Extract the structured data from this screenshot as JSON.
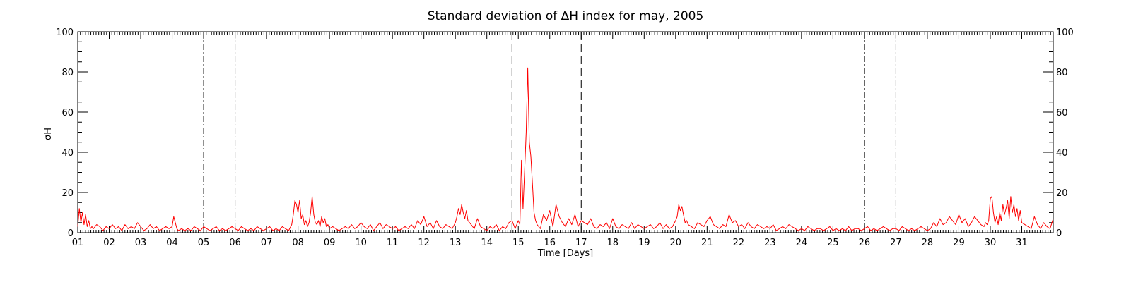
{
  "chart_data": {
    "type": "line",
    "title": "Standard deviation of ΔH index for may, 2005",
    "xlabel": "Time [Days]",
    "ylabel": "σH",
    "xlim": [
      1,
      32
    ],
    "ylim": [
      0,
      100
    ],
    "x_ticks": [
      "01",
      "02",
      "03",
      "04",
      "05",
      "06",
      "07",
      "08",
      "09",
      "10",
      "11",
      "12",
      "13",
      "14",
      "15",
      "16",
      "17",
      "18",
      "19",
      "20",
      "21",
      "22",
      "23",
      "24",
      "25",
      "26",
      "27",
      "28",
      "29",
      "30",
      "31"
    ],
    "y_ticks": [
      0,
      20,
      40,
      60,
      80,
      100
    ],
    "grid": false,
    "line_color": "#ff0000",
    "vertical_markers": [
      {
        "x": 5.0,
        "style": "dash-dot"
      },
      {
        "x": 6.0,
        "style": "dash-dot"
      },
      {
        "x": 14.8,
        "style": "dashed"
      },
      {
        "x": 17.0,
        "style": "dashed"
      },
      {
        "x": 26.0,
        "style": "dash-dot"
      },
      {
        "x": 27.0,
        "style": "dash-dot"
      }
    ],
    "series": [
      {
        "x": [
          1.0,
          1.05,
          1.1,
          1.15,
          1.2,
          1.25,
          1.3,
          1.35,
          1.4,
          1.45,
          1.5,
          1.6,
          1.7,
          1.8,
          1.9,
          2.0,
          2.1,
          2.2,
          2.3,
          2.4,
          2.5,
          2.6,
          2.7,
          2.8,
          2.9,
          3.0,
          3.1,
          3.2,
          3.3,
          3.4,
          3.5,
          3.6,
          3.7,
          3.8,
          3.9,
          4.0,
          4.05,
          4.1,
          4.15,
          4.2,
          4.3,
          4.4,
          4.5,
          4.6,
          4.7,
          4.8,
          4.9,
          5.0,
          5.1,
          5.2,
          5.3,
          5.4,
          5.5,
          5.6,
          5.7,
          5.8,
          5.9,
          6.0,
          6.1,
          6.2,
          6.3,
          6.4,
          6.5,
          6.6,
          6.7,
          6.8,
          6.9,
          7.0,
          7.1,
          7.2,
          7.3,
          7.4,
          7.5,
          7.6,
          7.7,
          7.8,
          7.85,
          7.9,
          7.95,
          8.0,
          8.05,
          8.1,
          8.15,
          8.2,
          8.25,
          8.3,
          8.35,
          8.4,
          8.45,
          8.5,
          8.55,
          8.6,
          8.65,
          8.7,
          8.75,
          8.8,
          8.85,
          8.9,
          8.95,
          9.0,
          9.1,
          9.2,
          9.3,
          9.4,
          9.5,
          9.6,
          9.7,
          9.8,
          9.9,
          10.0,
          10.1,
          10.2,
          10.3,
          10.4,
          10.5,
          10.6,
          10.7,
          10.8,
          10.9,
          11.0,
          11.1,
          11.2,
          11.3,
          11.4,
          11.5,
          11.6,
          11.7,
          11.8,
          11.9,
          12.0,
          12.1,
          12.2,
          12.3,
          12.4,
          12.5,
          12.6,
          12.7,
          12.8,
          12.9,
          13.0,
          13.05,
          13.1,
          13.15,
          13.2,
          13.25,
          13.3,
          13.35,
          13.4,
          13.5,
          13.6,
          13.7,
          13.8,
          13.9,
          14.0,
          14.1,
          14.2,
          14.3,
          14.4,
          14.5,
          14.6,
          14.7,
          14.8,
          14.9,
          15.0,
          15.05,
          15.1,
          15.15,
          15.2,
          15.25,
          15.3,
          15.35,
          15.4,
          15.45,
          15.5,
          15.55,
          15.6,
          15.7,
          15.8,
          15.9,
          16.0,
          16.1,
          16.2,
          16.3,
          16.4,
          16.5,
          16.6,
          16.7,
          16.8,
          16.9,
          17.0,
          17.1,
          17.2,
          17.3,
          17.4,
          17.5,
          17.6,
          17.7,
          17.8,
          17.9,
          18.0,
          18.1,
          18.2,
          18.3,
          18.4,
          18.5,
          18.6,
          18.7,
          18.8,
          18.9,
          19.0,
          19.1,
          19.2,
          19.3,
          19.4,
          19.5,
          19.6,
          19.7,
          19.8,
          19.9,
          20.0,
          20.05,
          20.1,
          20.15,
          20.2,
          20.25,
          20.3,
          20.35,
          20.4,
          20.5,
          20.6,
          20.7,
          20.8,
          20.9,
          21.0,
          21.1,
          21.2,
          21.3,
          21.4,
          21.5,
          21.6,
          21.7,
          21.8,
          21.9,
          22.0,
          22.1,
          22.2,
          22.3,
          22.4,
          22.5,
          22.6,
          22.7,
          22.8,
          22.9,
          23.0,
          23.1,
          23.2,
          23.3,
          23.4,
          23.5,
          23.6,
          23.7,
          23.8,
          23.9,
          24.0,
          24.1,
          24.2,
          24.3,
          24.4,
          24.5,
          24.6,
          24.7,
          24.8,
          24.9,
          25.0,
          25.1,
          25.2,
          25.3,
          25.4,
          25.5,
          25.6,
          25.7,
          25.8,
          25.9,
          26.0,
          26.1,
          26.2,
          26.3,
          26.4,
          26.5,
          26.6,
          26.7,
          26.8,
          26.9,
          27.0,
          27.1,
          27.2,
          27.3,
          27.4,
          27.5,
          27.6,
          27.7,
          27.8,
          27.9,
          28.0,
          28.1,
          28.2,
          28.3,
          28.4,
          28.5,
          28.6,
          28.7,
          28.8,
          28.9,
          29.0,
          29.1,
          29.2,
          29.3,
          29.4,
          29.5,
          29.6,
          29.7,
          29.8,
          29.85,
          29.9,
          29.95,
          30.0,
          30.05,
          30.1,
          30.15,
          30.2,
          30.25,
          30.3,
          30.35,
          30.4,
          30.45,
          30.5,
          30.55,
          30.6,
          30.65,
          30.7,
          30.75,
          30.8,
          30.85,
          30.9,
          30.95,
          31.0,
          31.1,
          31.2,
          31.3,
          31.4,
          31.5,
          31.6,
          31.7,
          31.8,
          31.9,
          32.0
        ],
        "y": [
          3,
          12,
          5,
          10,
          4,
          9,
          3,
          6,
          2,
          3,
          2,
          4,
          3,
          1,
          3,
          2,
          4,
          2,
          3,
          1,
          4,
          2,
          3,
          2,
          5,
          3,
          1,
          2,
          4,
          2,
          3,
          1,
          2,
          3,
          2,
          3,
          8,
          5,
          2,
          1,
          2,
          1,
          2,
          1,
          3,
          2,
          1,
          3,
          2,
          1,
          2,
          3,
          1,
          2,
          1,
          2,
          3,
          2,
          1,
          3,
          2,
          1,
          2,
          1,
          3,
          2,
          1,
          2,
          3,
          1,
          2,
          1,
          3,
          2,
          1,
          4,
          9,
          16,
          14,
          10,
          16,
          7,
          9,
          4,
          6,
          3,
          5,
          10,
          18,
          9,
          5,
          4,
          6,
          3,
          8,
          5,
          7,
          3,
          4,
          2,
          3,
          2,
          1,
          2,
          3,
          2,
          4,
          2,
          3,
          5,
          3,
          2,
          4,
          1,
          3,
          5,
          2,
          4,
          3,
          2,
          3,
          1,
          2,
          3,
          2,
          4,
          2,
          6,
          4,
          8,
          3,
          5,
          2,
          6,
          3,
          2,
          4,
          3,
          2,
          5,
          8,
          12,
          9,
          14,
          10,
          7,
          11,
          6,
          4,
          2,
          7,
          3,
          2,
          1,
          3,
          2,
          4,
          1,
          3,
          2,
          5,
          6,
          2,
          6,
          4,
          36,
          12,
          30,
          50,
          82,
          45,
          38,
          24,
          10,
          6,
          4,
          2,
          9,
          6,
          11,
          3,
          14,
          8,
          5,
          3,
          7,
          4,
          9,
          3,
          6,
          5,
          4,
          7,
          3,
          2,
          4,
          3,
          5,
          2,
          7,
          3,
          2,
          4,
          3,
          2,
          5,
          2,
          4,
          3,
          2,
          3,
          4,
          2,
          3,
          5,
          2,
          4,
          2,
          3,
          6,
          8,
          14,
          11,
          13,
          9,
          5,
          6,
          4,
          3,
          2,
          5,
          4,
          3,
          6,
          8,
          4,
          3,
          2,
          4,
          3,
          9,
          5,
          6,
          3,
          4,
          2,
          5,
          3,
          2,
          4,
          3,
          2,
          3,
          2,
          4,
          1,
          2,
          3,
          2,
          4,
          3,
          2,
          1,
          2,
          1,
          3,
          2,
          1,
          2,
          2,
          1,
          2,
          3,
          1,
          2,
          1,
          2,
          1,
          3,
          1,
          2,
          2,
          1,
          2,
          3,
          1,
          2,
          1,
          2,
          3,
          2,
          1,
          2,
          2,
          1,
          3,
          2,
          1,
          2,
          1,
          2,
          3,
          2,
          1,
          2,
          5,
          3,
          7,
          4,
          5,
          8,
          6,
          4,
          9,
          5,
          7,
          3,
          5,
          8,
          6,
          4,
          3,
          5,
          4,
          6,
          17,
          18,
          10,
          5,
          8,
          4,
          10,
          6,
          14,
          9,
          12,
          16,
          7,
          18,
          10,
          14,
          8,
          12,
          6,
          11,
          5,
          4,
          3,
          2,
          8,
          4,
          2,
          5,
          3,
          2,
          7
        ]
      }
    ]
  }
}
